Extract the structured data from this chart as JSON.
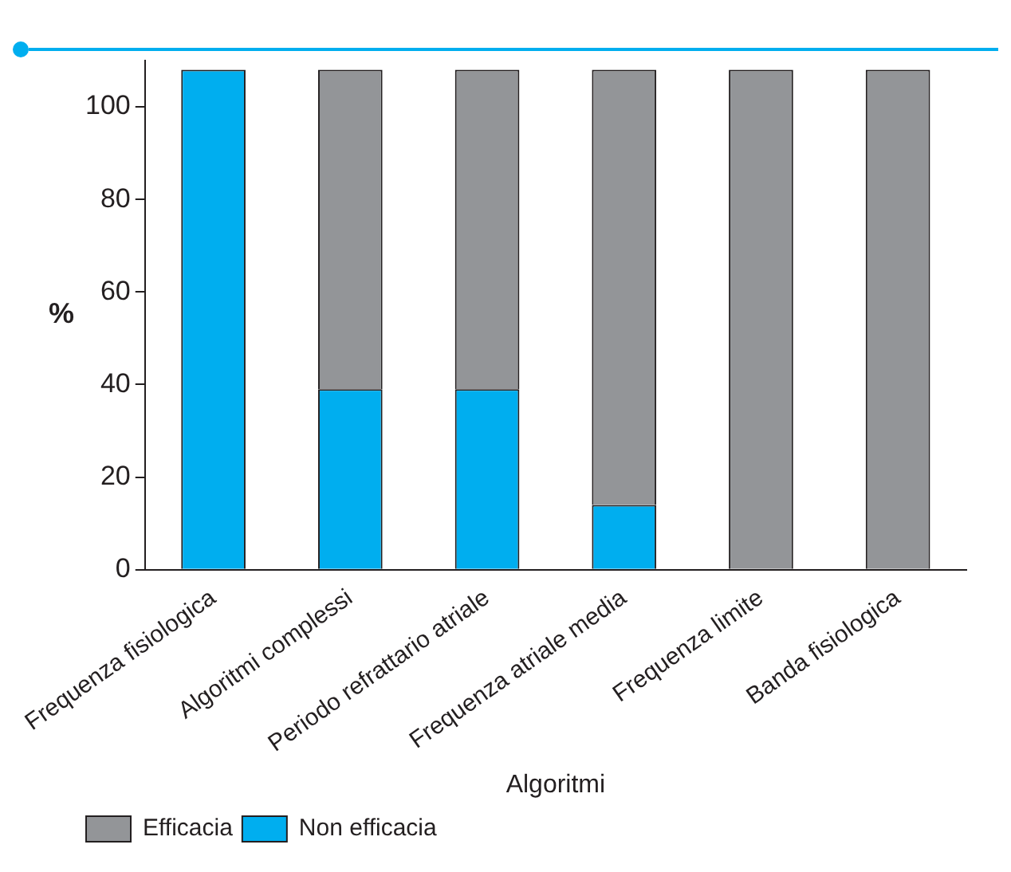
{
  "chart_data": {
    "type": "bar",
    "xlabel": "Algoritmi",
    "ylabel": "%",
    "categories": [
      "Frequenza fisiologica",
      "Algoritmi complessi",
      "Periodo refrattario atriale",
      "Frequenza atriale media",
      "Frequenza limite",
      "Banda fisiologica"
    ],
    "series": [
      {
        "name": "Non efficacia",
        "color": "#00aeef",
        "values": [
          108,
          39,
          39,
          14,
          0,
          0
        ]
      },
      {
        "name": "Efficacia",
        "color": "#939598",
        "values": [
          0,
          69,
          69,
          94,
          108,
          108
        ]
      }
    ],
    "stacked": true,
    "ylim": [
      0,
      110
    ],
    "yticks": [
      0,
      20,
      40,
      60,
      80,
      100
    ],
    "grid": false,
    "legend": "bottom left"
  }
}
